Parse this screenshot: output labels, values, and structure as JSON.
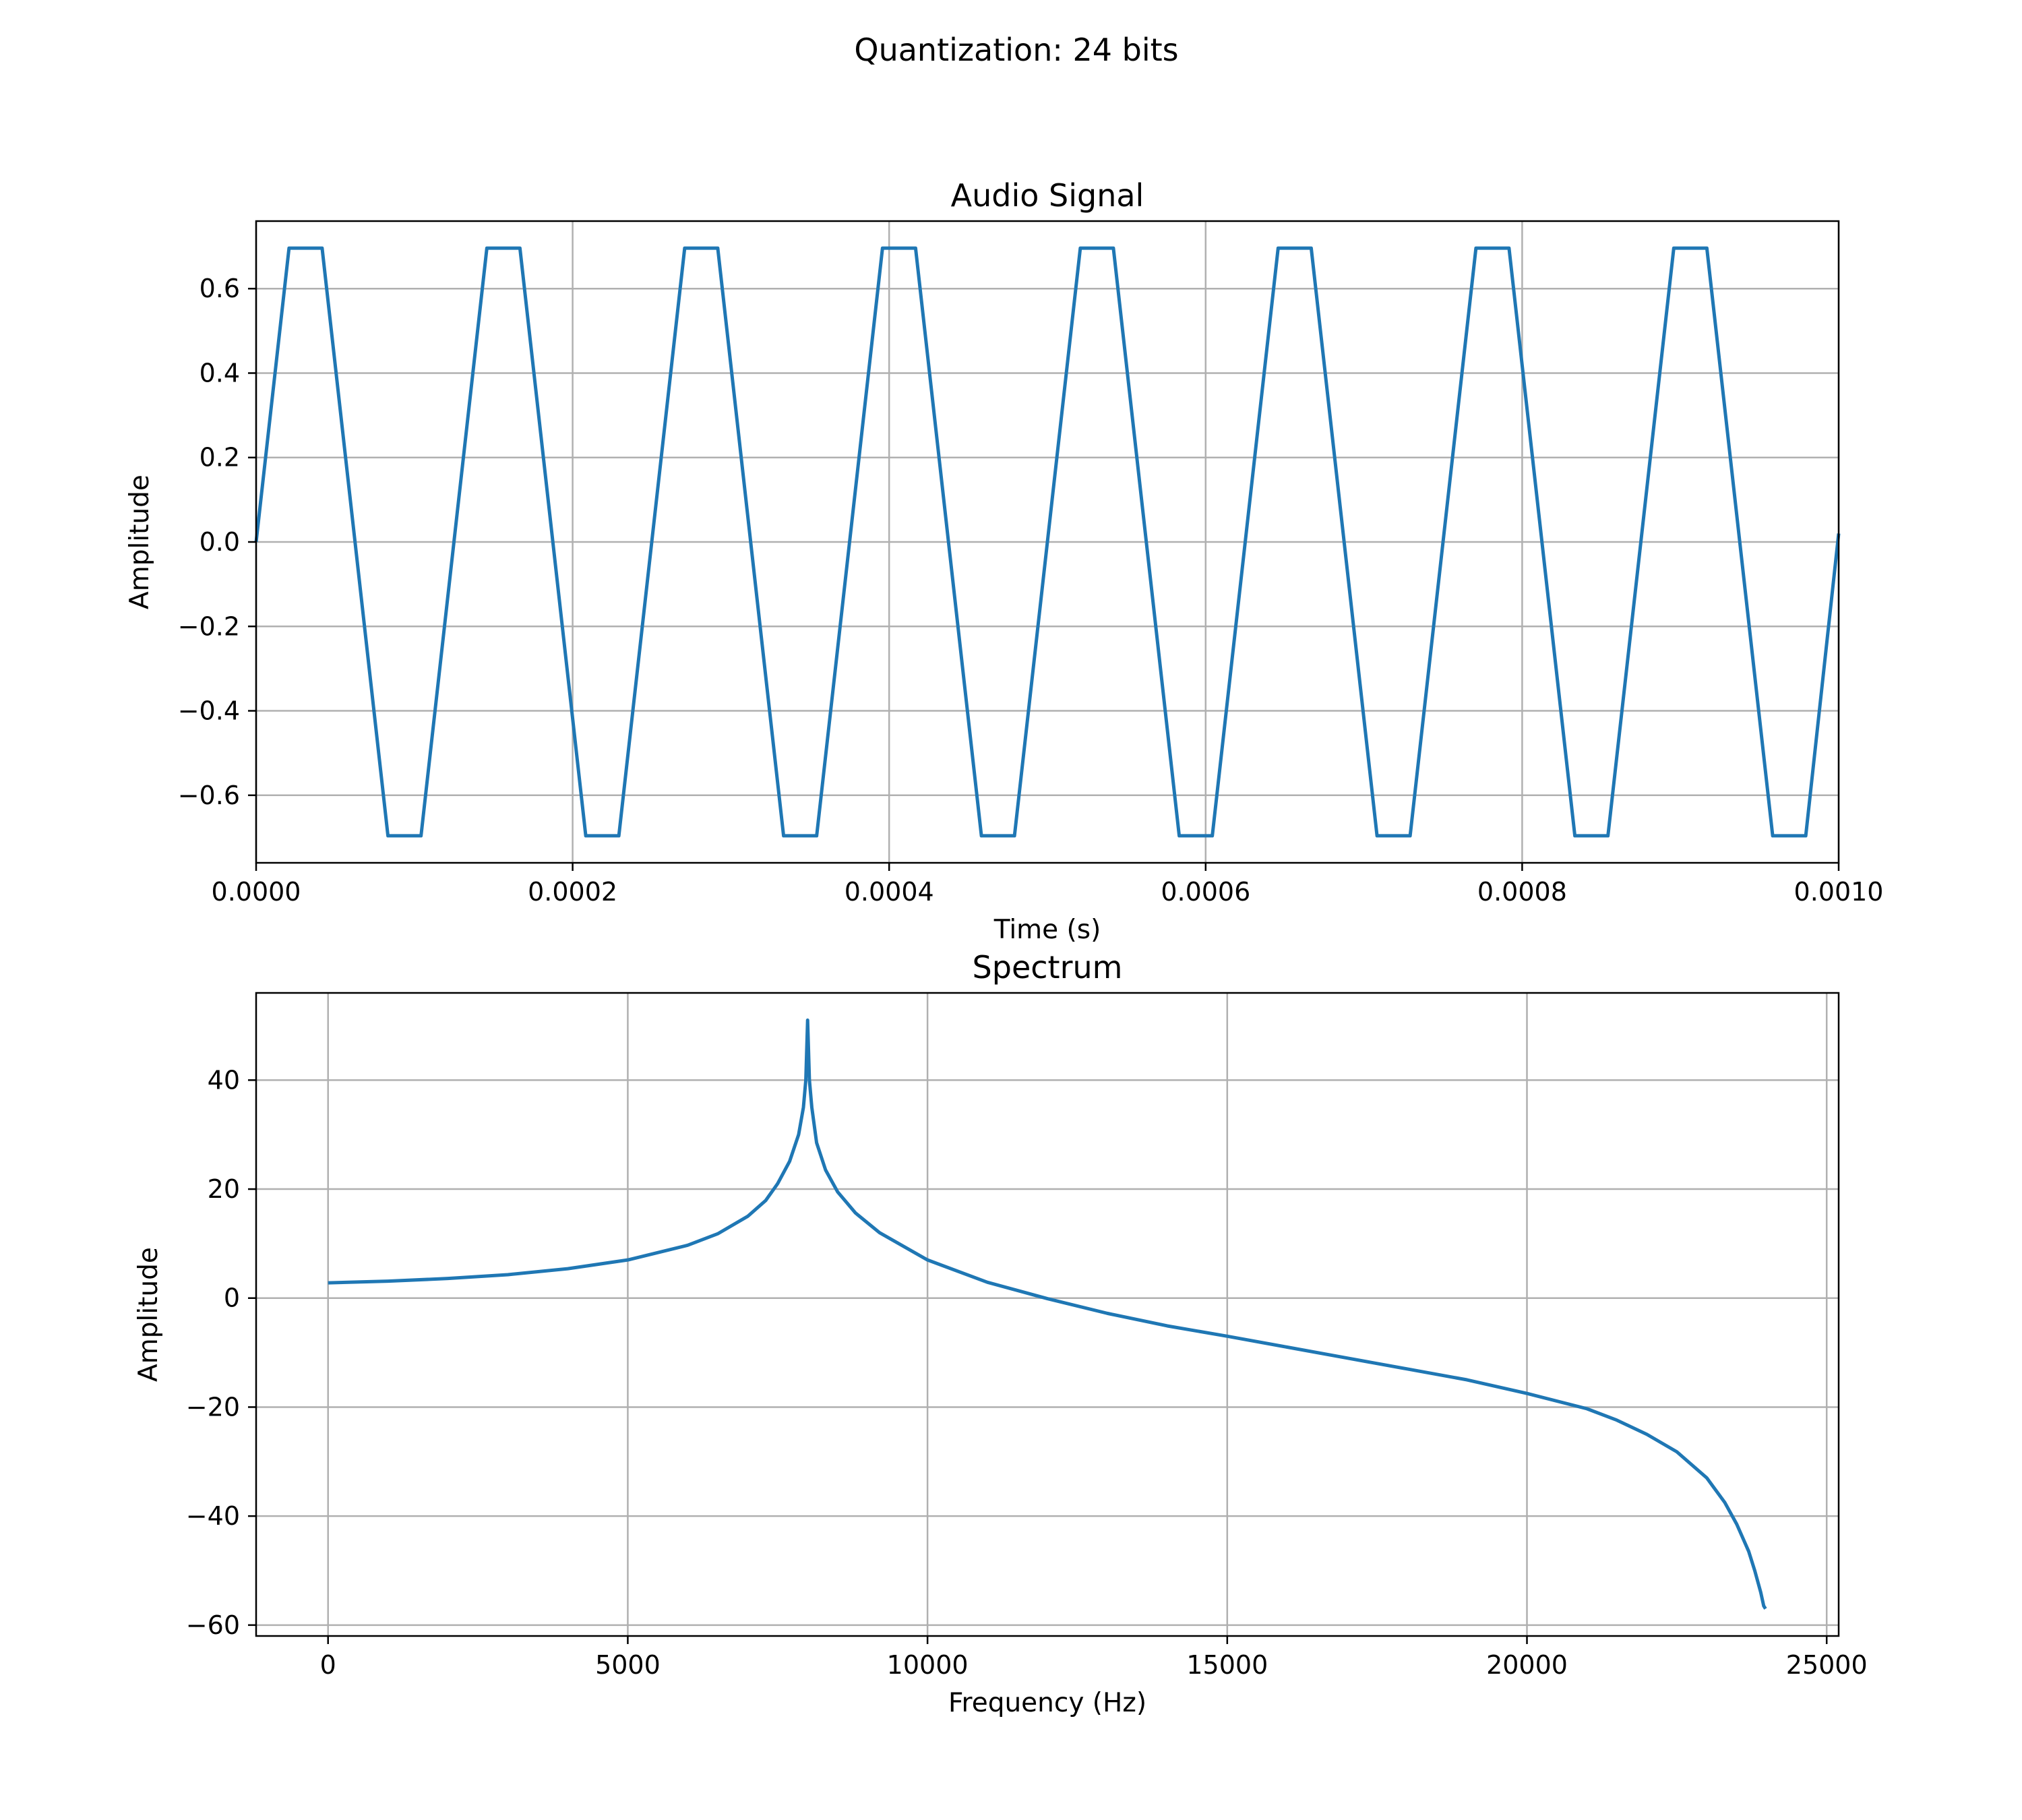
{
  "figure": {
    "suptitle": "Quantization: 24 bits"
  },
  "chart_data": [
    {
      "type": "line",
      "title": "Audio Signal",
      "xlabel": "Time (s)",
      "ylabel": "Amplitude",
      "xlim": [
        0,
        0.001
      ],
      "ylim": [
        -0.76,
        0.76
      ],
      "xticks": [
        0,
        0.0002,
        0.0004,
        0.0006,
        0.0008,
        0.001
      ],
      "xtick_labels": [
        "0.0000",
        "0.0002",
        "0.0004",
        "0.0006",
        "0.0008",
        "0.0010"
      ],
      "yticks": [
        -0.6,
        -0.4,
        -0.2,
        0.0,
        0.2,
        0.4,
        0.6
      ],
      "ytick_labels": [
        "−0.6",
        "−0.4",
        "−0.2",
        "0.0",
        "0.2",
        "0.4",
        "0.6"
      ],
      "grid": true,
      "color": "#1f77b4",
      "series": [
        {
          "x": [
            0,
            2.08e-05,
            4.17e-05,
            8.33e-05,
            0.0001042,
            0.0001458,
            0.0001667,
            0.0002083,
            0.0002292,
            0.0002708,
            0.0002917,
            0.0003333,
            0.0003542,
            0.0003958,
            0.0004167,
            0.0004583,
            0.0004792,
            0.0005208,
            0.0005417,
            0.0005833,
            0.0006042,
            0.0006458,
            0.0006667,
            0.0007083,
            0.0007292,
            0.0007708,
            0.0007917,
            0.0008333,
            0.0008542,
            0.0008958,
            0.0009167,
            0.0009583,
            0.0009792,
            0.001
          ],
          "y": [
            0,
            0.696,
            0.696,
            -0.696,
            -0.696,
            0.696,
            0.696,
            -0.696,
            -0.696,
            0.696,
            0.696,
            -0.696,
            -0.696,
            0.696,
            0.696,
            -0.696,
            -0.696,
            0.696,
            0.696,
            -0.696,
            -0.696,
            0.696,
            0.696,
            -0.696,
            -0.696,
            0.696,
            0.696,
            -0.696,
            -0.696,
            0.696,
            0.696,
            -0.696,
            -0.696,
            0.02
          ]
        }
      ]
    },
    {
      "type": "line",
      "title": "Spectrum",
      "xlabel": "Frequency (Hz)",
      "ylabel": "Amplitude",
      "xlim": [
        -1200,
        25200
      ],
      "ylim": [
        -62,
        56
      ],
      "xticks": [
        0,
        5000,
        10000,
        15000,
        20000,
        25000
      ],
      "xtick_labels": [
        "0",
        "5000",
        "10000",
        "15000",
        "20000",
        "25000"
      ],
      "yticks": [
        -60,
        -40,
        -20,
        0,
        20,
        40
      ],
      "ytick_labels": [
        "−60",
        "−40",
        "−20",
        "0",
        "20",
        "40"
      ],
      "grid": true,
      "color": "#1f77b4",
      "series": [
        {
          "x": [
            0,
            1000,
            2000,
            3000,
            4000,
            5000,
            6000,
            6500,
            7000,
            7300,
            7500,
            7700,
            7850,
            7930,
            7970,
            8000,
            8030,
            8070,
            8150,
            8300,
            8500,
            8800,
            9200,
            10000,
            11000,
            12000,
            13000,
            14000,
            15000,
            16000,
            17000,
            18000,
            19000,
            20000,
            21000,
            21500,
            22000,
            22500,
            23000,
            23300,
            23500,
            23700,
            23800,
            23900,
            23950,
            23980
          ],
          "y": [
            2.8,
            3.1,
            3.6,
            4.3,
            5.4,
            7.0,
            9.7,
            11.8,
            15.0,
            17.9,
            21.0,
            25.1,
            30.0,
            35.0,
            40.0,
            51.0,
            40.0,
            35.0,
            28.5,
            23.5,
            19.5,
            15.6,
            12.0,
            7.0,
            2.9,
            -0.1,
            -2.8,
            -5.1,
            -7.0,
            -9.0,
            -11.0,
            -13.0,
            -15.0,
            -17.5,
            -20.3,
            -22.4,
            -25.0,
            -28.2,
            -33.0,
            -37.5,
            -41.5,
            -46.5,
            -50.0,
            -54.0,
            -56.5,
            -57.0
          ]
        }
      ]
    }
  ]
}
